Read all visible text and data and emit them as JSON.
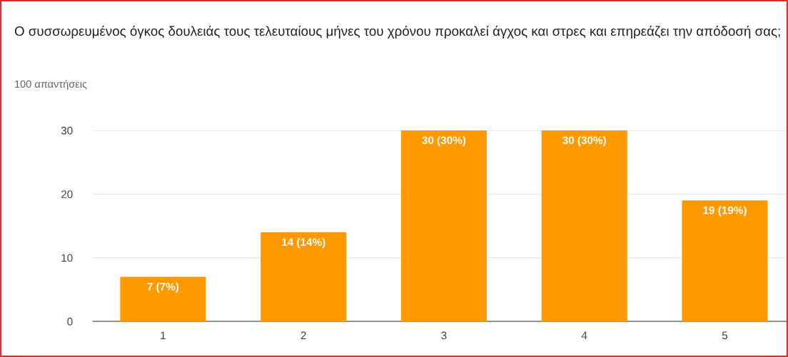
{
  "chart_data": {
    "type": "bar",
    "title": "Ο συσσωρευμένος όγκος δουλειάς τους τελευταίους μήνες του χρόνου προκαλεί άγχος και στρες και επηρεάζει την απόδοσή σας;",
    "subtitle": "100 απαντήσεις",
    "categories": [
      "1",
      "2",
      "3",
      "4",
      "5"
    ],
    "values": [
      7,
      14,
      30,
      30,
      19
    ],
    "value_labels": [
      "7 (7%)",
      "14 (14%)",
      "30 (30%)",
      "30 (30%)",
      "19 (19%)"
    ],
    "color": "#ff9900",
    "ylim": [
      0,
      30
    ],
    "yticks": [
      0,
      10,
      20,
      30
    ],
    "grid": "y"
  }
}
